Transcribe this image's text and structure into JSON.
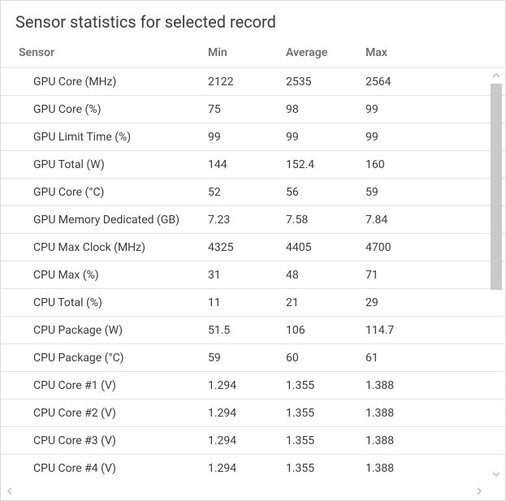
{
  "title": "Sensor statistics for selected record",
  "columns": {
    "sensor": "Sensor",
    "min": "Min",
    "avg": "Average",
    "max": "Max"
  },
  "rows": [
    {
      "sensor": "GPU Core (MHz)",
      "min": "2122",
      "avg": "2535",
      "max": "2564"
    },
    {
      "sensor": "GPU Core (%)",
      "min": "75",
      "avg": "98",
      "max": "99"
    },
    {
      "sensor": "GPU Limit Time (%)",
      "min": "99",
      "avg": "99",
      "max": "99"
    },
    {
      "sensor": "GPU Total (W)",
      "min": "144",
      "avg": "152.4",
      "max": "160"
    },
    {
      "sensor": "GPU Core (°C)",
      "min": "52",
      "avg": "56",
      "max": "59"
    },
    {
      "sensor": "GPU Memory Dedicated (GB)",
      "min": "7.23",
      "avg": "7.58",
      "max": "7.84"
    },
    {
      "sensor": "CPU Max Clock (MHz)",
      "min": "4325",
      "avg": "4405",
      "max": "4700"
    },
    {
      "sensor": "CPU Max (%)",
      "min": "31",
      "avg": "48",
      "max": "71"
    },
    {
      "sensor": "CPU Total (%)",
      "min": "11",
      "avg": "21",
      "max": "29"
    },
    {
      "sensor": "CPU Package (W)",
      "min": "51.5",
      "avg": "106",
      "max": "114.7"
    },
    {
      "sensor": "CPU Package (°C)",
      "min": "59",
      "avg": "60",
      "max": "61"
    },
    {
      "sensor": "CPU Core #1 (V)",
      "min": "1.294",
      "avg": "1.355",
      "max": "1.388"
    },
    {
      "sensor": "CPU Core #2 (V)",
      "min": "1.294",
      "avg": "1.355",
      "max": "1.388"
    },
    {
      "sensor": "CPU Core #3 (V)",
      "min": "1.294",
      "avg": "1.355",
      "max": "1.388"
    },
    {
      "sensor": "CPU Core #4 (V)",
      "min": "1.294",
      "avg": "1.355",
      "max": "1.388"
    }
  ],
  "scrollbar": {
    "thumb_height_pct": 54,
    "thumb_top_pct": 0
  },
  "colors": {
    "panel_border": "#d9d9d9",
    "row_divider": "#e4e4e4",
    "text": "#3a3a3a",
    "header_text": "#6e6e6e",
    "scroll_thumb": "#c9c9c9",
    "scroll_arrow": "#b8b8b8",
    "background": "#ffffff"
  }
}
